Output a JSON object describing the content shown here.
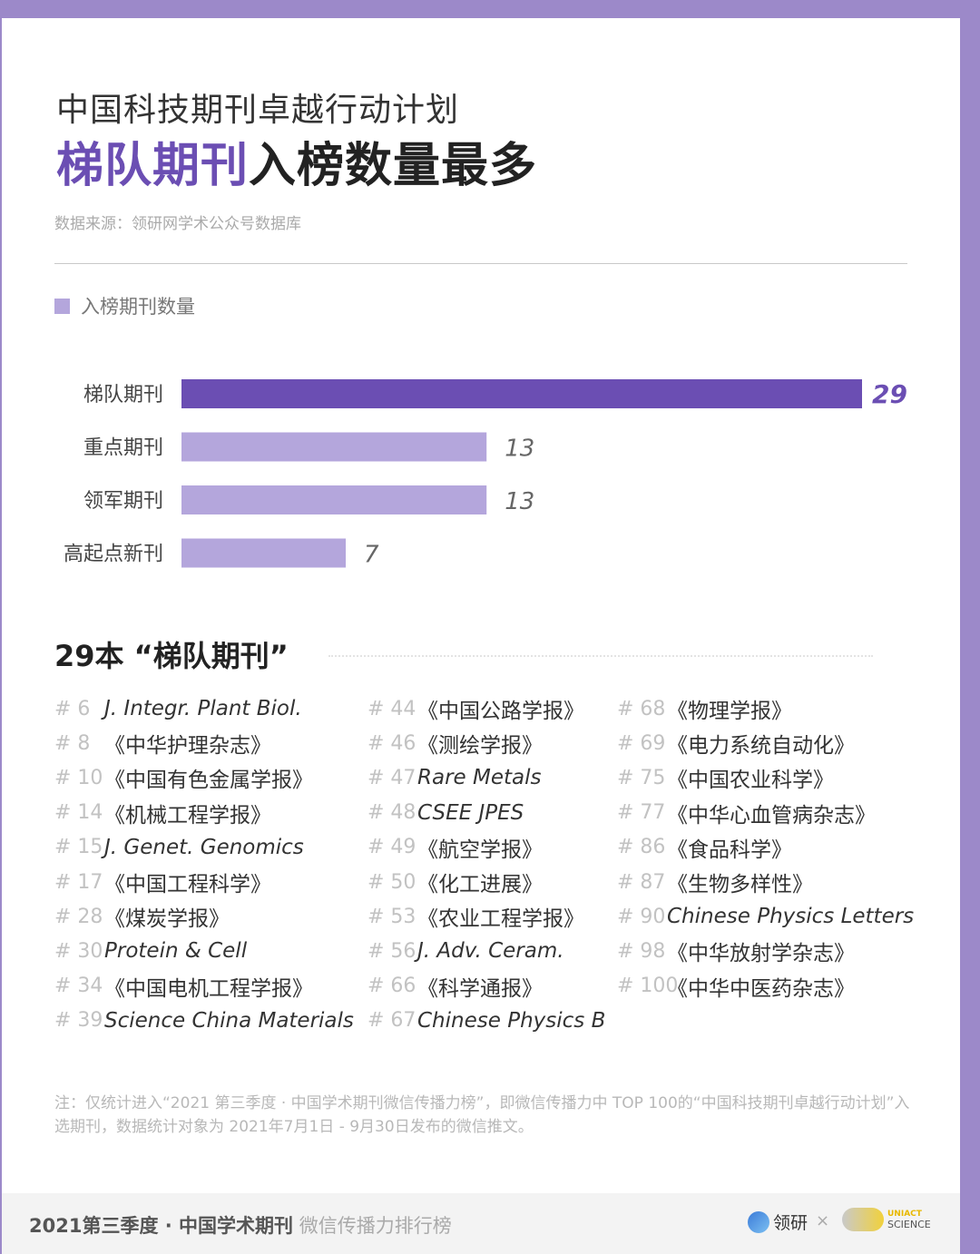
{
  "header": {
    "line1": "中国科技期刊卓越行动计划",
    "line2_accent": "梯队期刊",
    "line2_rest": "入榜数量最多",
    "source": "数据来源：领研网学术公众号数据库"
  },
  "legend": {
    "label": "入榜期刊数量"
  },
  "chart_data": {
    "type": "bar",
    "orientation": "horizontal",
    "categories": [
      "梯队期刊",
      "重点期刊",
      "领军期刊",
      "高起点新刊"
    ],
    "values": [
      29,
      13,
      13,
      7
    ],
    "xlim": [
      0,
      29
    ],
    "colors": [
      "#6b4eb3",
      "#b4a6dc",
      "#b4a6dc",
      "#b4a6dc"
    ],
    "legend": "入榜期刊数量",
    "grid": false
  },
  "section": {
    "title": "29本 “梯队期刊”"
  },
  "journals": [
    [
      {
        "rank": "# 6",
        "name": "J. Integr. Plant Biol.",
        "en": true
      },
      {
        "rank": "# 8",
        "name": "《中华护理杂志》",
        "en": false
      },
      {
        "rank": "# 10",
        "name": "《中国有色金属学报》",
        "en": false
      },
      {
        "rank": "# 14",
        "name": "《机械工程学报》",
        "en": false
      },
      {
        "rank": "# 15",
        "name": "J. Genet. Genomics",
        "en": true
      },
      {
        "rank": "# 17",
        "name": "《中国工程科学》",
        "en": false
      },
      {
        "rank": "# 28",
        "name": "《煤炭学报》",
        "en": false
      },
      {
        "rank": "# 30",
        "name": "Protein & Cell",
        "en": true
      },
      {
        "rank": "# 34",
        "name": "《中国电机工程学报》",
        "en": false
      },
      {
        "rank": "# 39",
        "name": "Science China Materials",
        "en": true
      }
    ],
    [
      {
        "rank": "# 44",
        "name": "《中国公路学报》",
        "en": false
      },
      {
        "rank": "# 46",
        "name": "《测绘学报》",
        "en": false
      },
      {
        "rank": "# 47",
        "name": "Rare Metals",
        "en": true
      },
      {
        "rank": "# 48",
        "name": "CSEE JPES",
        "en": true
      },
      {
        "rank": "# 49",
        "name": "《航空学报》",
        "en": false
      },
      {
        "rank": "# 50",
        "name": "《化工进展》",
        "en": false
      },
      {
        "rank": "# 53",
        "name": "《农业工程学报》",
        "en": false
      },
      {
        "rank": "# 56",
        "name": "J. Adv. Ceram.",
        "en": true
      },
      {
        "rank": "# 66",
        "name": "《科学通报》",
        "en": false
      },
      {
        "rank": "# 67",
        "name": "Chinese Physics B",
        "en": true
      }
    ],
    [
      {
        "rank": "# 68",
        "name": "《物理学报》",
        "en": false
      },
      {
        "rank": "# 69",
        "name": "《电力系统自动化》",
        "en": false
      },
      {
        "rank": "# 75",
        "name": "《中国农业科学》",
        "en": false
      },
      {
        "rank": "# 77",
        "name": "《中华心血管病杂志》",
        "en": false
      },
      {
        "rank": "# 86",
        "name": "《食品科学》",
        "en": false
      },
      {
        "rank": "# 87",
        "name": "《生物多样性》",
        "en": false
      },
      {
        "rank": "# 90",
        "name": "Chinese Physics Letters",
        "en": true
      },
      {
        "rank": "# 98",
        "name": "《中华放射学杂志》",
        "en": false
      },
      {
        "rank": "# 100",
        "name": "《中华中医药杂志》",
        "en": false
      }
    ]
  ],
  "note": "注：仅统计进入“2021 第三季度 · 中国学术期刊微信传播力榜”，即微信传播力中 TOP 100的“中国科技期刊卓越行动计划”入选期刊，数据统计对象为 2021年7月1日 - 9月30日发布的微信推文。",
  "footer": {
    "bold": "2021第三季度 · 中国学术期刊",
    "sub": "微信传播力排行榜",
    "logo1": "领研",
    "times": "×",
    "logo2_line1": "UNIACT",
    "logo2_line2": "SCIENCE"
  }
}
